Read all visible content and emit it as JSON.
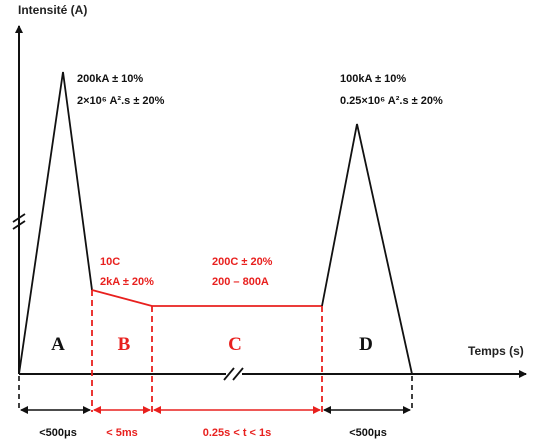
{
  "axes": {
    "y_title": "Intensité (A)",
    "x_title": "Temps (s)"
  },
  "colors": {
    "black": "#111111",
    "red": "#e8201e"
  },
  "phases": {
    "A": {
      "letter": "A",
      "line1": "200kA ± 10%",
      "line2": "2×10⁶ A².s ± 20%",
      "duration": "<500μs"
    },
    "B": {
      "letter": "B",
      "line1": "10C",
      "line2": "2kA ± 20%",
      "duration": "< 5ms"
    },
    "C": {
      "letter": "C",
      "line1": "200C ± 20%",
      "line2": "200 – 800A",
      "duration": "0.25s < t < 1s"
    },
    "D": {
      "letter": "D",
      "line1": "100kA ± 10%",
      "line2": "0.25×10⁶ A².s ± 20%",
      "duration": "<500μs"
    }
  }
}
